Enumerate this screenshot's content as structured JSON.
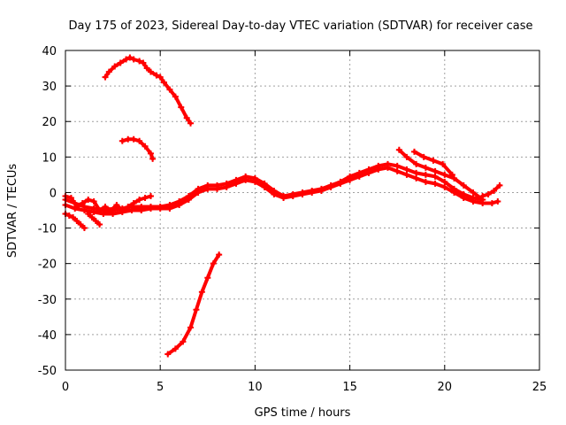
{
  "chart_data": {
    "type": "scatter",
    "title": "Day 175 of 2023, Sidereal Day-to-day VTEC variation (SDTVAR) for receiver case",
    "xlabel": "GPS time / hours",
    "ylabel": "SDTVAR / TECUs",
    "xlim": [
      0,
      25
    ],
    "ylim": [
      -50,
      40
    ],
    "xticks": [
      0,
      5,
      10,
      15,
      20,
      25
    ],
    "yticks": [
      -50,
      -40,
      -30,
      -20,
      -10,
      0,
      10,
      20,
      30,
      40
    ],
    "grid": true,
    "legend": "none",
    "marker_color": "#ff0000",
    "series": [
      {
        "name": "main-trace-upper",
        "x": [
          0,
          0.5,
          1,
          1.5,
          2,
          2.5,
          3,
          3.5,
          4,
          4.5,
          5,
          5.5,
          6,
          6.5,
          7,
          7.5,
          8,
          8.5,
          9,
          9.5,
          10,
          10.5,
          11,
          11.5,
          12,
          12.5,
          13,
          13.5,
          14,
          14.5,
          15,
          15.5,
          16,
          16.5,
          17,
          17.5,
          18,
          18.5,
          19,
          19.5,
          20,
          20.5,
          21,
          21.5,
          22
        ],
        "y": [
          -2,
          -3,
          -4,
          -4.5,
          -5,
          -5,
          -4.5,
          -4,
          -4,
          -4,
          -4,
          -3.5,
          -2.5,
          -1,
          1,
          2,
          2,
          2.5,
          3.5,
          4.5,
          4,
          2.5,
          0.5,
          -1,
          -0.5,
          0,
          0.5,
          1,
          2,
          3,
          4.5,
          5.5,
          6.5,
          7.5,
          8,
          7.5,
          6.5,
          5.5,
          5,
          4.5,
          3,
          1,
          -0.5,
          -1.5,
          -2
        ]
      },
      {
        "name": "main-trace-lower",
        "x": [
          0,
          0.5,
          1,
          1.5,
          2,
          2.5,
          3,
          3.5,
          4,
          4.5,
          5,
          5.5,
          6,
          6.5,
          7,
          7.5,
          8,
          8.5,
          9,
          9.5,
          10,
          10.5,
          11,
          11.5,
          12,
          12.5,
          13,
          13.5,
          14,
          14.5,
          15,
          15.5,
          16,
          16.5,
          17,
          17.5,
          18,
          18.5,
          19,
          19.5,
          20,
          20.5,
          21,
          21.5,
          22,
          22.5,
          22.8
        ],
        "y": [
          -3.5,
          -4.5,
          -5,
          -5.5,
          -6,
          -6,
          -5.5,
          -5,
          -5,
          -4.5,
          -4.5,
          -4.5,
          -3.5,
          -2,
          0,
          1,
          1,
          1.5,
          2.5,
          3.5,
          3,
          1.5,
          -0.5,
          -1.5,
          -1,
          -0.5,
          0,
          0.5,
          1.5,
          2.5,
          3.5,
          4.5,
          5.5,
          6.5,
          7,
          6,
          5,
          4,
          3,
          2.5,
          1.5,
          0,
          -1.5,
          -2.5,
          -3,
          -3,
          -2.5
        ]
      },
      {
        "name": "early-wiggle-a",
        "x": [
          0,
          0.3,
          0.6,
          0.9,
          1.2,
          1.5,
          1.8,
          2.1,
          2.4,
          2.7,
          3,
          3.3,
          3.6,
          3.9,
          4.2,
          4.5
        ],
        "y": [
          -1,
          -1.5,
          -4,
          -3,
          -2,
          -2.5,
          -5,
          -4,
          -5,
          -3.5,
          -5,
          -4,
          -3,
          -2,
          -1.5,
          -1
        ]
      },
      {
        "name": "early-drop",
        "x": [
          0,
          0.2,
          0.4,
          0.6,
          0.8,
          1.0
        ],
        "y": [
          -6,
          -6.5,
          -7,
          -8,
          -9,
          -10
        ]
      },
      {
        "name": "early-drop-b",
        "x": [
          1.2,
          1.4,
          1.6,
          1.8
        ],
        "y": [
          -6,
          -7,
          -8,
          -9
        ]
      },
      {
        "name": "late-spike-a",
        "x": [
          17.6,
          18.0,
          18.5,
          19.0,
          19.5,
          20.0,
          20.5,
          21.0,
          21.5,
          22.0
        ],
        "y": [
          12,
          10,
          8,
          7,
          6,
          5,
          4,
          2,
          0,
          -2
        ]
      },
      {
        "name": "late-spike-b",
        "x": [
          18.4,
          18.9,
          19.4,
          19.9,
          20.4
        ],
        "y": [
          11.5,
          10,
          9,
          8,
          5
        ]
      },
      {
        "name": "end-tail",
        "x": [
          22.0,
          22.3,
          22.6,
          22.9
        ],
        "y": [
          -1,
          -0.5,
          0.5,
          2
        ]
      },
      {
        "name": "arc-top",
        "x": [
          2.1,
          2.3,
          2.6,
          2.9,
          3.2,
          3.4,
          3.6,
          3.9,
          4.1,
          4.3,
          4.5,
          4.8,
          5.0,
          5.2,
          5.5,
          5.8,
          6.1,
          6.4,
          6.6
        ],
        "y": [
          32.5,
          34,
          35.5,
          36.5,
          37.5,
          38,
          37.5,
          37,
          36.5,
          35,
          34,
          33,
          32.5,
          31,
          29,
          27,
          24,
          21,
          19.5
        ]
      },
      {
        "name": "arc-mid",
        "x": [
          3.0,
          3.3,
          3.6,
          3.9,
          4.2,
          4.5,
          4.6
        ],
        "y": [
          14.5,
          15,
          15,
          14.5,
          13,
          11,
          9.5
        ]
      },
      {
        "name": "rising-segment",
        "x": [
          5.4,
          5.8,
          6.2,
          6.6,
          6.9,
          7.2,
          7.5,
          7.8,
          8.1
        ],
        "y": [
          -45.5,
          -44,
          -42,
          -38,
          -33,
          -28,
          -24,
          -20,
          -17.5
        ]
      }
    ]
  }
}
